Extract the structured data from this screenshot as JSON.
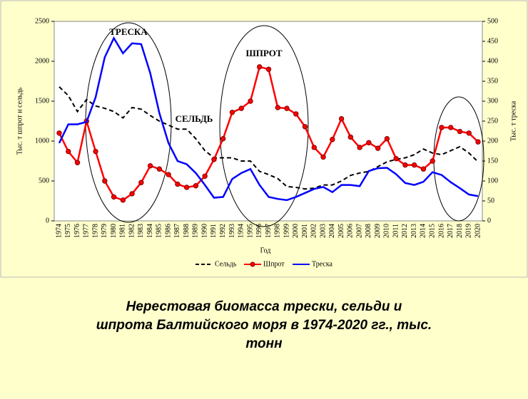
{
  "chart_data": {
    "type": "line",
    "x_label": "Год",
    "y_label": "Тыс. т шпрот и сельдь",
    "y2_label": "Тыс. т треска",
    "categories": [
      "1974",
      "1975",
      "1976",
      "1977",
      "1978",
      "1979",
      "1980",
      "1981",
      "1982",
      "1983",
      "1984",
      "1985",
      "1986",
      "1987",
      "1988",
      "1989",
      "1990",
      "1991",
      "1992",
      "1993",
      "1994",
      "1995",
      "1996",
      "1997",
      "1998",
      "1999",
      "2000",
      "2001",
      "2002",
      "2003",
      "2004",
      "2005",
      "2006",
      "2007",
      "2008",
      "2009",
      "2010",
      "2011",
      "2012",
      "2013",
      "2014",
      "2015",
      "2016",
      "2017",
      "2018",
      "2019",
      "2020"
    ],
    "series": [
      {
        "name": "Сельдь",
        "color": "#000000",
        "line_style": "dashed",
        "marker": "none",
        "values": [
          1680,
          1570,
          1370,
          1520,
          1440,
          1410,
          1370,
          1290,
          1420,
          1400,
          1320,
          1250,
          1200,
          1150,
          1150,
          1030,
          880,
          790,
          790,
          790,
          750,
          750,
          620,
          580,
          530,
          430,
          420,
          400,
          410,
          450,
          450,
          500,
          570,
          600,
          620,
          680,
          740,
          770,
          790,
          830,
          900,
          850,
          830,
          880,
          930,
          850,
          740
        ]
      },
      {
        "name": "Шпрот",
        "color": "#ff0000",
        "line_style": "solid",
        "marker": "circle",
        "values": [
          1100,
          870,
          730,
          1250,
          870,
          500,
          300,
          260,
          340,
          480,
          690,
          650,
          580,
          460,
          420,
          440,
          560,
          770,
          1030,
          1360,
          1410,
          1500,
          1930,
          1900,
          1420,
          1410,
          1340,
          1180,
          920,
          800,
          1020,
          1280,
          1050,
          920,
          980,
          910,
          1030,
          780,
          700,
          700,
          650,
          750,
          1170,
          1170,
          1120,
          1100,
          990
        ]
      },
      {
        "name": "Треска",
        "color": "#0000ff",
        "line_style": "solid",
        "marker": "none",
        "axis": "y2",
        "values": [
          195,
          242,
          242,
          248,
          310,
          410,
          458,
          420,
          445,
          443,
          370,
          270,
          195,
          150,
          142,
          120,
          90,
          58,
          60,
          105,
          120,
          130,
          90,
          60,
          55,
          52,
          60,
          70,
          80,
          85,
          72,
          90,
          90,
          87,
          125,
          132,
          133,
          117,
          95,
          90,
          98,
          122,
          115,
          97,
          82,
          66,
          62
        ]
      }
    ],
    "ylim": [
      0,
      2500
    ],
    "yticks": [
      0,
      500,
      1000,
      1500,
      2000,
      2500
    ],
    "y2lim": [
      0,
      500
    ],
    "y2ticks": [
      0,
      50,
      100,
      150,
      200,
      250,
      300,
      350,
      400,
      450,
      500
    ],
    "legend": "bottom",
    "annotations": [
      {
        "text": "ТРЕСКА",
        "color": "#0000cc"
      },
      {
        "text": "ШПРОТ",
        "color": "#ff0000"
      },
      {
        "text": "СЕЛЬДЬ",
        "color": "#000000"
      }
    ]
  },
  "caption": [
    "Нерестовая биомасса трески, сельди и",
    "шпрота Балтийского моря в 1974-2020 гг., тыс.",
    "тонн"
  ]
}
